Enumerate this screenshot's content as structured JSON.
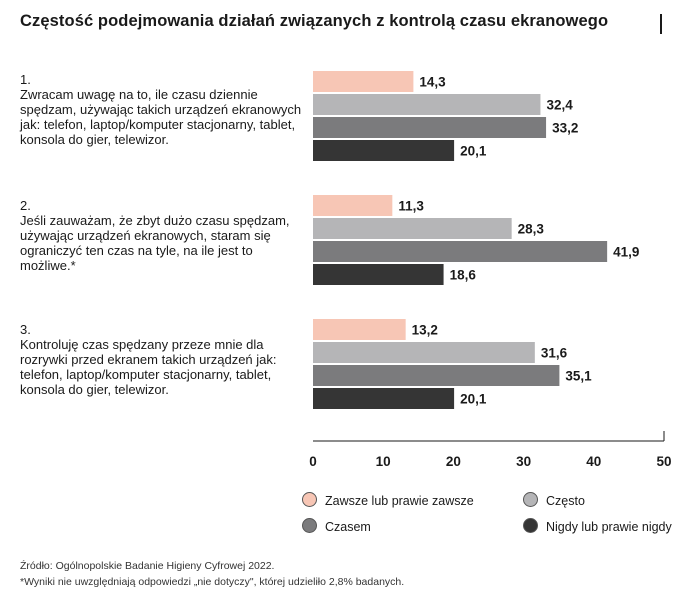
{
  "title": "Częstość podejmowania działań związanych z kontrolą czasu ekranowego",
  "chart_data": {
    "type": "bar",
    "orientation": "horizontal",
    "categories": [
      {
        "number": "1.",
        "text": "Zwracam uwagę na to, ile czasu dziennie spędzam, używając takich urządzeń ekranowych jak: telefon, laptop/komputer stacjonarny, tablet, konsola do gier, telewizor."
      },
      {
        "number": "2.",
        "text": "Jeśli zauważam, że zbyt dużo czasu spędzam, używając urządzeń ekranowych, staram się ograniczyć ten czas na tyle, na ile jest to możliwe.*"
      },
      {
        "number": "3.",
        "text": "Kontroluję czas spędzany przeze mnie dla rozrywki przed ekranem takich urządzeń jak: telefon, laptop/komputer stacjonarny, tablet, konsola do gier, telewizor."
      }
    ],
    "series": [
      {
        "name": "Zawsze lub prawie zawsze",
        "color": "#f7c6b5",
        "values": [
          14.3,
          11.3,
          13.2
        ],
        "labels": [
          "14,3",
          "11,3",
          "13,2"
        ]
      },
      {
        "name": "Często",
        "color": "#b5b5b7",
        "values": [
          32.4,
          28.3,
          31.6
        ],
        "labels": [
          "32,4",
          "28,3",
          "31,6"
        ]
      },
      {
        "name": "Czasem",
        "color": "#7b7b7d",
        "values": [
          33.2,
          41.9,
          35.1
        ],
        "labels": [
          "33,2",
          "41,9",
          "35,1"
        ]
      },
      {
        "name": "Nigdy lub prawie nigdy",
        "color": "#353535",
        "values": [
          20.1,
          18.6,
          20.1
        ],
        "labels": [
          "20,1",
          "18,6",
          "20,1"
        ]
      }
    ],
    "xlim": [
      0,
      50
    ],
    "xticks": [
      0,
      10,
      20,
      30,
      40,
      50
    ],
    "grid": false,
    "legend_position": "bottom"
  },
  "source": "Źródło: Ogólnopolskie Badanie Higieny Cyfrowej 2022.",
  "footnote": "*Wyniki nie uwzględniają odpowiedzi „nie dotyczy\", której udzieliło 2,8% badanych."
}
